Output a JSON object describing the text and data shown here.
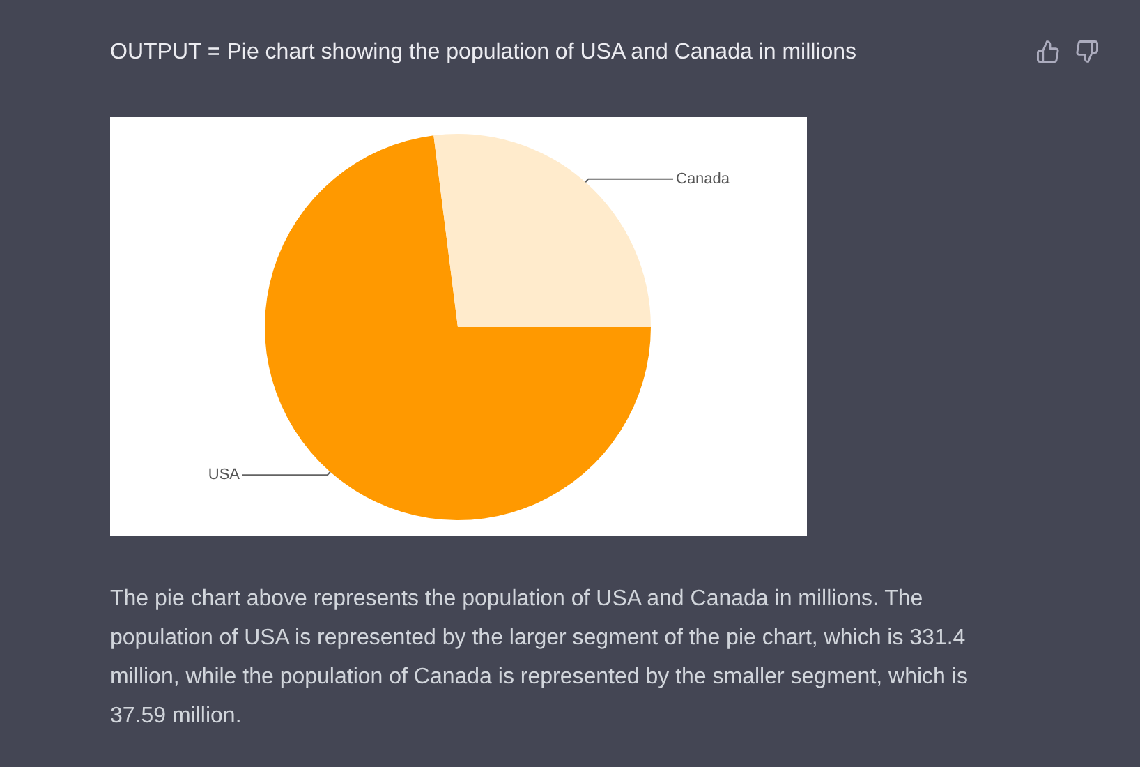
{
  "chart_data": {
    "type": "pie",
    "title": "OUTPUT = Pie chart showing the population of USA and Canada in millions",
    "categories": [
      "USA",
      "Canada"
    ],
    "values": [
      73,
      27
    ],
    "colors": [
      "#ff9900",
      "#ffebcc"
    ],
    "annotations": [
      "The pie chart above represents the population of USA and Canada in millions. The population of USA is represented by the larger segment of the pie chart, which is 331.4 million, while the population of Canada is represented by the smaller segment, which is 37.59 million."
    ]
  }
}
